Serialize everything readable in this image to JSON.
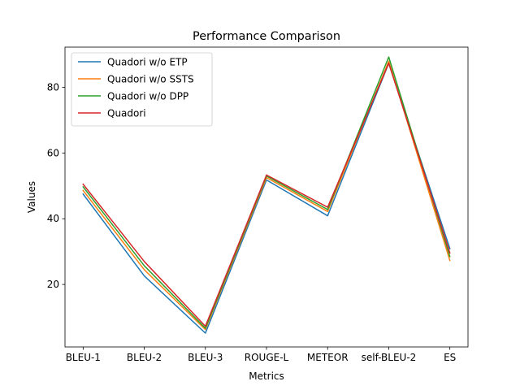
{
  "chart_data": {
    "type": "line",
    "title": "Performance Comparison",
    "xlabel": "Metrics",
    "ylabel": "Values",
    "categories": [
      "BLEU-1",
      "BLEU-2",
      "BLEU-3",
      "ROUGE-L",
      "METEOR",
      "self-BLEU-2",
      "ES"
    ],
    "ylim": [
      1.0,
      92.2
    ],
    "yticks": [
      20,
      40,
      60,
      80
    ],
    "grid": false,
    "legend_position": "upper left",
    "series": [
      {
        "name": "Quadori w/o ETP",
        "color": "#1f77b4",
        "values": [
          47.5,
          22.6,
          5.2,
          51.8,
          40.9,
          87.3,
          30.9
        ]
      },
      {
        "name": "Quadori w/o SSTS",
        "color": "#ff7f0e",
        "values": [
          48.6,
          24.5,
          6.3,
          52.5,
          42.2,
          87.9,
          27.3
        ]
      },
      {
        "name": "Quadori w/o DPP",
        "color": "#2ca02c",
        "values": [
          49.7,
          25.7,
          6.7,
          53.0,
          42.8,
          89.2,
          28.5
        ]
      },
      {
        "name": "Quadori",
        "color": "#d62728",
        "values": [
          50.5,
          27.0,
          7.3,
          53.3,
          43.5,
          87.3,
          29.6
        ]
      }
    ]
  }
}
